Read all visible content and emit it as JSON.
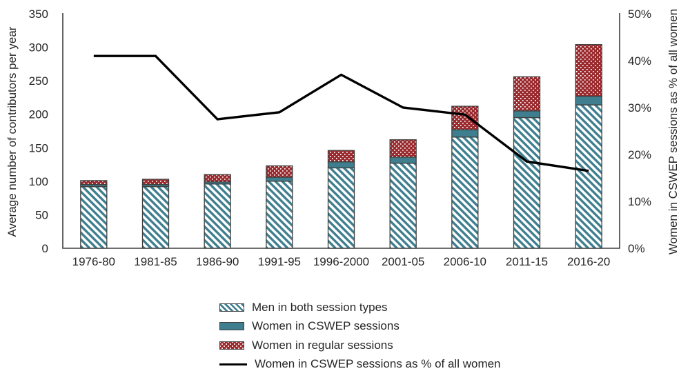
{
  "chart_data": {
    "type": "bar",
    "subtype": "stacked-bars-with-line-overlay",
    "title": "",
    "categories": [
      "1976-80",
      "1981-85",
      "1986-90",
      "1991-95",
      "1996-2000",
      "2001-05",
      "2006-10",
      "2011-15",
      "2016-20"
    ],
    "series": [
      {
        "name": "Men in both session types",
        "style": "hatch",
        "axis": "left",
        "values": [
          92,
          92,
          96,
          100,
          120,
          127,
          166,
          195,
          214
        ]
      },
      {
        "name": "Women in CSWEP sessions",
        "style": "solid",
        "axis": "left",
        "values": [
          3,
          3,
          3,
          6,
          9,
          9,
          11,
          10,
          13
        ]
      },
      {
        "name": "Women in regular sessions",
        "style": "dots",
        "axis": "left",
        "values": [
          6,
          8,
          11,
          17,
          17,
          26,
          35,
          51,
          77
        ]
      },
      {
        "name": "Women in CSWEP sessions as % of all women",
        "style": "line",
        "axis": "right",
        "values": [
          41,
          41,
          27.5,
          29,
          37,
          30,
          28.5,
          18.5,
          16.5
        ]
      }
    ],
    "stacked_totals": [
      101,
      103,
      110,
      123,
      146,
      162,
      212,
      256,
      304
    ],
    "left_axis": {
      "label": "Average number of contributors per year",
      "min": 0,
      "max": 350,
      "step": 50,
      "ticks": [
        "0",
        "50",
        "100",
        "150",
        "200",
        "250",
        "300",
        "350"
      ]
    },
    "right_axis": {
      "label": "Women in CSWEP sessions as % of all women",
      "min": 0,
      "max": 50,
      "step": 10,
      "ticks": [
        "0%",
        "10%",
        "20%",
        "30%",
        "40%",
        "50%"
      ]
    },
    "legend_position": "bottom",
    "grid": "off",
    "colors": {
      "teal": "#3E7E8E",
      "red": "#9A2A2E",
      "line": "#000000",
      "axis": "#3F3F3F",
      "text": "#262626",
      "hatch_bg": "#FFFFFF"
    }
  }
}
